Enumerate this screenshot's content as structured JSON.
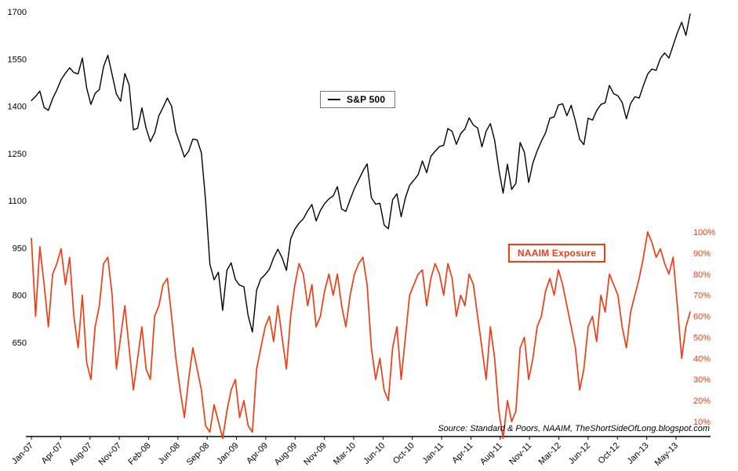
{
  "chart_data": {
    "type": "line",
    "title": "",
    "x": {
      "tick_labels": [
        "Jan-07",
        "Apr-07",
        "Aug-07",
        "Nov-07",
        "Feb-08",
        "Jun-08",
        "Sep-08",
        "Jan-09",
        "Apr-09",
        "Aug-09",
        "Nov-09",
        "Mar-10",
        "Jun-10",
        "Oct-10",
        "Jan-11",
        "Apr-11",
        "Aug-11",
        "Nov-11",
        "Mar-12",
        "Jun-12",
        "Oct-12",
        "Jan-13",
        "May-13"
      ]
    },
    "y_left": {
      "ticks": [
        1700,
        1550,
        1400,
        1250,
        1100,
        950,
        800,
        650
      ],
      "color": "#000000"
    },
    "y_right": {
      "ticks": [
        100,
        90,
        80,
        70,
        60,
        50,
        40,
        30,
        20,
        10
      ],
      "suffix": "%",
      "color": "#f23c14"
    },
    "series": [
      {
        "name": "S&P 500",
        "axis": "left",
        "color": "#000000",
        "values": [
          1418,
          1431,
          1448,
          1396,
          1387,
          1424,
          1452,
          1484,
          1505,
          1522,
          1507,
          1503,
          1553,
          1458,
          1406,
          1441,
          1453,
          1526,
          1562,
          1500,
          1439,
          1416,
          1504,
          1468,
          1325,
          1330,
          1395,
          1330,
          1288,
          1315,
          1370,
          1397,
          1426,
          1400,
          1318,
          1280,
          1239,
          1257,
          1296,
          1293,
          1252,
          1099,
          899,
          849,
          873,
          752,
          879,
          903,
          850,
          832,
          827,
          735,
          683,
          816,
          852,
          866,
          883,
          919,
          946,
          919,
          879,
          979,
          1010,
          1029,
          1043,
          1068,
          1088,
          1036,
          1069,
          1091,
          1106,
          1115,
          1145,
          1074,
          1066,
          1104,
          1139,
          1166,
          1194,
          1217,
          1110,
          1089,
          1092,
          1023,
          1011,
          1103,
          1122,
          1049,
          1109,
          1149,
          1165,
          1183,
          1226,
          1189,
          1241,
          1257,
          1272,
          1276,
          1329,
          1320,
          1279,
          1313,
          1328,
          1363,
          1340,
          1331,
          1271,
          1321,
          1345,
          1292,
          1199,
          1124,
          1216,
          1136,
          1155,
          1285,
          1254,
          1158,
          1220,
          1258,
          1289,
          1316,
          1362,
          1366,
          1404,
          1408,
          1370,
          1403,
          1353,
          1295,
          1278,
          1362,
          1356,
          1386,
          1406,
          1411,
          1466,
          1440,
          1433,
          1412,
          1360,
          1409,
          1430,
          1426,
          1466,
          1502,
          1518,
          1514,
          1552,
          1569,
          1553,
          1593,
          1633,
          1667,
          1625,
          1693
        ]
      },
      {
        "name": "NAAIM Exposure",
        "axis": "right",
        "color": "#f23c14",
        "values": [
          97,
          60,
          93,
          75,
          55,
          80,
          85,
          92,
          75,
          88,
          60,
          45,
          70,
          38,
          30,
          55,
          65,
          85,
          88,
          70,
          35,
          50,
          65,
          45,
          25,
          40,
          55,
          35,
          30,
          60,
          65,
          75,
          78,
          60,
          40,
          25,
          12,
          30,
          45,
          35,
          25,
          8,
          5,
          18,
          10,
          2,
          15,
          25,
          30,
          12,
          20,
          8,
          5,
          35,
          45,
          55,
          60,
          48,
          65,
          50,
          35,
          60,
          75,
          85,
          80,
          65,
          75,
          55,
          60,
          72,
          80,
          70,
          80,
          65,
          55,
          70,
          80,
          85,
          88,
          75,
          45,
          30,
          40,
          25,
          20,
          45,
          55,
          30,
          50,
          70,
          75,
          80,
          82,
          65,
          78,
          85,
          80,
          70,
          85,
          78,
          60,
          70,
          65,
          80,
          75,
          60,
          45,
          30,
          55,
          40,
          15,
          2,
          20,
          10,
          15,
          45,
          50,
          30,
          40,
          55,
          60,
          72,
          78,
          70,
          82,
          75,
          65,
          55,
          45,
          25,
          35,
          55,
          60,
          48,
          70,
          62,
          80,
          75,
          70,
          55,
          45,
          62,
          70,
          78,
          88,
          100,
          95,
          88,
          92,
          85,
          80,
          88,
          65,
          40,
          55,
          62
        ]
      }
    ],
    "legend": {
      "position": "top-center",
      "entries": [
        "S&P 500"
      ]
    },
    "annotation_box": "NAAIM Exposure",
    "source": "Source: Standard & Poors, NAAIM, TheShortSideOfLong.blogspot.com"
  }
}
